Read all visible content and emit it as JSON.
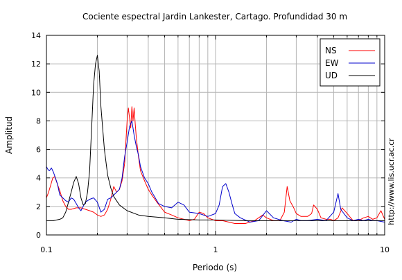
{
  "chart_data": {
    "type": "line",
    "title": "Cociente espectral Jardin Lankester, Cartago. Profundidad 30 m",
    "xlabel": "Periodo (s)",
    "ylabel": "Amplitud",
    "xscale": "log",
    "xlim": [
      0.1,
      10
    ],
    "ylim": [
      0,
      14
    ],
    "x_ticks": [
      0.1,
      1,
      10
    ],
    "x_tick_labels": [
      "0.1",
      "1",
      "10"
    ],
    "y_ticks": [
      0,
      2,
      4,
      6,
      8,
      10,
      12,
      14
    ],
    "y_tick_labels": [
      "0",
      "2",
      "4",
      "6",
      "8",
      "10",
      "12",
      "14"
    ],
    "grid": true,
    "legend_position": "top-right",
    "side_text": "http://www.lis.ucr.ac.cr",
    "series": [
      {
        "name": "NS",
        "color": "#ff0000",
        "x": [
          0.1,
          0.103,
          0.106,
          0.109,
          0.112,
          0.115,
          0.12,
          0.125,
          0.13,
          0.135,
          0.14,
          0.15,
          0.16,
          0.17,
          0.18,
          0.19,
          0.2,
          0.21,
          0.22,
          0.23,
          0.24,
          0.25,
          0.26,
          0.27,
          0.28,
          0.29,
          0.295,
          0.3,
          0.305,
          0.31,
          0.315,
          0.32,
          0.325,
          0.33,
          0.335,
          0.34,
          0.35,
          0.36,
          0.38,
          0.4,
          0.42,
          0.45,
          0.5,
          0.55,
          0.6,
          0.65,
          0.7,
          0.75,
          0.8,
          0.85,
          0.9,
          1.0,
          1.1,
          1.2,
          1.3,
          1.5,
          1.7,
          1.9,
          2.0,
          2.2,
          2.4,
          2.55,
          2.65,
          2.75,
          2.9,
          3.0,
          3.2,
          3.5,
          3.7,
          3.8,
          4.0,
          4.2,
          4.5,
          4.8,
          5.0,
          5.3,
          5.6,
          6.0,
          6.5,
          7.0,
          7.5,
          8.0,
          8.5,
          9.0,
          9.5,
          10.0
        ],
        "y": [
          2.6,
          3.0,
          3.5,
          4.0,
          4.1,
          3.7,
          3.1,
          2.4,
          2.0,
          1.8,
          1.8,
          1.9,
          1.9,
          1.8,
          1.7,
          1.6,
          1.4,
          1.3,
          1.4,
          1.8,
          2.5,
          3.4,
          3.0,
          3.2,
          3.8,
          5.0,
          6.5,
          8.0,
          8.9,
          8.2,
          7.5,
          9.0,
          8.0,
          8.9,
          7.8,
          6.8,
          5.5,
          4.5,
          3.8,
          3.2,
          2.8,
          2.3,
          1.6,
          1.4,
          1.2,
          1.1,
          1.0,
          1.1,
          1.6,
          1.5,
          1.2,
          1.0,
          1.0,
          0.9,
          0.8,
          0.8,
          1.0,
          1.4,
          1.2,
          1.0,
          1.0,
          1.6,
          3.4,
          2.4,
          1.9,
          1.5,
          1.3,
          1.3,
          1.5,
          2.1,
          1.8,
          1.2,
          1.1,
          1.1,
          1.0,
          1.2,
          1.9,
          1.5,
          1.0,
          1.0,
          1.2,
          1.3,
          1.1,
          1.2,
          1.7,
          1.1
        ]
      },
      {
        "name": "EW",
        "color": "#0000cc",
        "x": [
          0.1,
          0.102,
          0.104,
          0.107,
          0.11,
          0.113,
          0.116,
          0.12,
          0.125,
          0.13,
          0.135,
          0.14,
          0.145,
          0.15,
          0.155,
          0.16,
          0.17,
          0.18,
          0.19,
          0.2,
          0.21,
          0.22,
          0.23,
          0.24,
          0.25,
          0.26,
          0.27,
          0.28,
          0.29,
          0.3,
          0.31,
          0.32,
          0.33,
          0.34,
          0.35,
          0.36,
          0.37,
          0.38,
          0.4,
          0.42,
          0.44,
          0.46,
          0.5,
          0.55,
          0.6,
          0.65,
          0.7,
          0.8,
          0.9,
          1.0,
          1.05,
          1.1,
          1.15,
          1.2,
          1.25,
          1.3,
          1.4,
          1.6,
          1.8,
          2.0,
          2.2,
          2.5,
          2.8,
          3.0,
          3.2,
          3.5,
          4.0,
          4.5,
          5.0,
          5.3,
          5.5,
          6.0,
          6.5,
          7.0,
          7.5,
          8.0,
          8.5,
          9.0,
          10.0
        ],
        "y": [
          4.8,
          4.6,
          4.5,
          4.7,
          4.4,
          4.0,
          3.6,
          2.8,
          2.6,
          2.4,
          2.3,
          2.6,
          2.5,
          2.2,
          1.9,
          1.7,
          2.3,
          2.5,
          2.6,
          2.3,
          1.6,
          1.8,
          2.5,
          2.6,
          2.8,
          3.0,
          3.2,
          4.0,
          5.5,
          6.5,
          7.6,
          8.0,
          7.0,
          6.2,
          5.6,
          4.8,
          4.4,
          4.0,
          3.6,
          3.0,
          2.6,
          2.2,
          2.0,
          1.9,
          2.3,
          2.1,
          1.6,
          1.5,
          1.3,
          1.5,
          2.1,
          3.4,
          3.6,
          3.0,
          2.2,
          1.5,
          1.2,
          0.9,
          1.0,
          1.7,
          1.2,
          1.0,
          0.9,
          1.1,
          1.0,
          1.0,
          1.1,
          1.0,
          1.6,
          2.9,
          1.8,
          1.2,
          1.0,
          1.1,
          1.0,
          1.1,
          1.0,
          1.0,
          0.9
        ]
      },
      {
        "name": "UD",
        "color": "#000000",
        "x": [
          0.1,
          0.11,
          0.12,
          0.125,
          0.13,
          0.135,
          0.14,
          0.145,
          0.15,
          0.155,
          0.16,
          0.165,
          0.17,
          0.175,
          0.18,
          0.185,
          0.19,
          0.195,
          0.2,
          0.205,
          0.21,
          0.22,
          0.23,
          0.24,
          0.25,
          0.27,
          0.3,
          0.35,
          0.4,
          0.5,
          0.6,
          0.8,
          1.0,
          1.5,
          2.0,
          3.0,
          5.0,
          7.0,
          10.0
        ],
        "y": [
          1.0,
          1.0,
          1.1,
          1.2,
          1.6,
          2.3,
          3.0,
          3.7,
          4.1,
          3.6,
          2.6,
          2.1,
          2.2,
          3.0,
          4.5,
          7.5,
          10.5,
          12.0,
          12.6,
          11.5,
          9.0,
          6.0,
          4.2,
          3.3,
          2.7,
          2.1,
          1.7,
          1.4,
          1.3,
          1.2,
          1.1,
          1.05,
          1.05,
          1.0,
          1.0,
          1.0,
          1.0,
          1.0,
          1.0
        ]
      }
    ]
  }
}
